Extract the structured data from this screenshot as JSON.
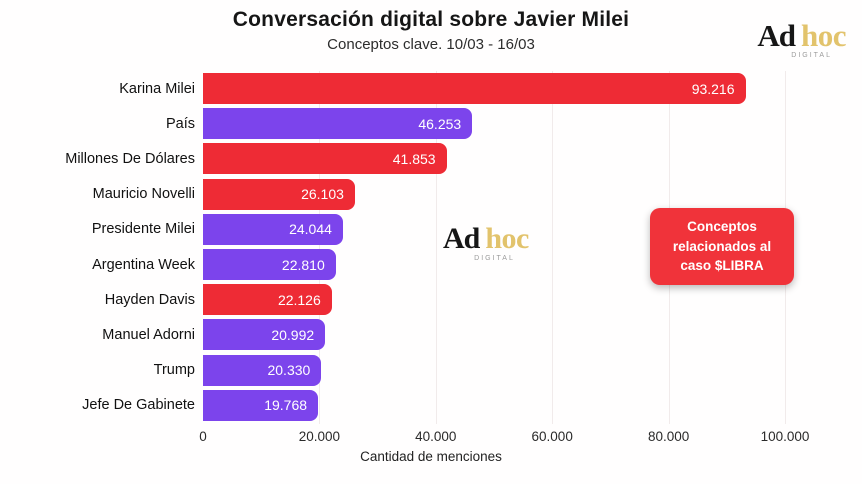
{
  "header": {
    "title": "Conversación digital sobre Javier Milei",
    "subtitle": "Conceptos clave. 10/03 - 16/03"
  },
  "logo": {
    "part1": "Ad",
    "part2": "hoc",
    "sub": "DIGITAL"
  },
  "watermark": {
    "part1": "Ad",
    "part2": "hoc",
    "sub": "DIGITAL"
  },
  "annotation": {
    "lines": [
      "Conceptos",
      "relacionados al",
      "caso $LIBRA"
    ],
    "bg_color": "#f0333a"
  },
  "chart_data": {
    "type": "bar",
    "orientation": "horizontal",
    "title": "Conversación digital sobre Javier Milei",
    "subtitle": "Conceptos clave. 10/03 - 16/03",
    "xlabel": "Cantidad de menciones",
    "ylabel": "",
    "xlim": [
      0,
      100000
    ],
    "grid": true,
    "legend": false,
    "categories": [
      "Karina Milei",
      "País",
      "Millones De Dólares",
      "Mauricio Novelli",
      "Presidente Milei",
      "Argentina Week",
      "Hayden Davis",
      "Manuel Adorni",
      "Trump",
      "Jefe De Gabinete"
    ],
    "values": [
      93216,
      46253,
      41853,
      26103,
      24044,
      22810,
      22126,
      20992,
      20330,
      19768
    ],
    "value_labels": [
      "93.216",
      "46.253",
      "41.853",
      "26.103",
      "24.044",
      "22.810",
      "22.126",
      "20.992",
      "20.330",
      "19.768"
    ],
    "bar_color_keys": [
      "red",
      "purple",
      "red",
      "red",
      "purple",
      "purple",
      "red",
      "purple",
      "purple",
      "purple"
    ],
    "colors": {
      "red": "#ee2b35",
      "purple": "#7c44ec"
    },
    "x_ticks": [
      {
        "value": 0,
        "label": "0"
      },
      {
        "value": 20000,
        "label": "20.000"
      },
      {
        "value": 40000,
        "label": "40.000"
      },
      {
        "value": 60000,
        "label": "60.000"
      },
      {
        "value": 80000,
        "label": "80.000"
      },
      {
        "value": 100000,
        "label": "100.000"
      }
    ]
  }
}
